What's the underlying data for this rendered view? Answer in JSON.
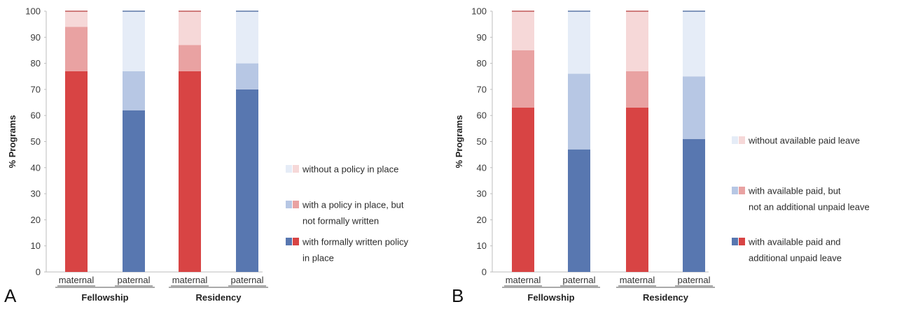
{
  "panel_letters": [
    "A",
    "B"
  ],
  "colors": {
    "maternal": [
      "#d84444",
      "#e9a2a2",
      "#f6d8d8"
    ],
    "paternal": [
      "#5877b0",
      "#b7c7e4",
      "#e5ecf7"
    ],
    "axis": "#bdbdbd",
    "text": "#333333"
  },
  "chart_data": [
    {
      "type": "bar",
      "stacked": true,
      "panel": "A",
      "ylabel": "% Programs",
      "ylim": [
        0,
        100
      ],
      "yticks": [
        0,
        10,
        20,
        30,
        40,
        50,
        60,
        70,
        80,
        90,
        100
      ],
      "grid": false,
      "categories": [
        "maternal",
        "paternal",
        "maternal",
        "paternal"
      ],
      "groups": [
        {
          "label": "Fellowship",
          "categories": [
            "maternal",
            "paternal"
          ]
        },
        {
          "label": "Residency",
          "categories": [
            "maternal",
            "paternal"
          ]
        }
      ],
      "series": [
        {
          "name": "with formally written policy in place",
          "values": [
            77,
            62,
            77,
            70
          ]
        },
        {
          "name": "with a policy in place, but not formally written",
          "values": [
            17,
            15,
            10,
            10
          ]
        },
        {
          "name": "without a policy in place",
          "values": [
            6,
            23,
            13,
            20
          ]
        }
      ],
      "legend_order": [
        2,
        1,
        0
      ],
      "legend_position": "right"
    },
    {
      "type": "bar",
      "stacked": true,
      "panel": "B",
      "ylabel": "% Programs",
      "ylim": [
        0,
        100
      ],
      "yticks": [
        0,
        10,
        20,
        30,
        40,
        50,
        60,
        70,
        80,
        90,
        100
      ],
      "grid": false,
      "categories": [
        "maternal",
        "paternal",
        "maternal",
        "paternal"
      ],
      "groups": [
        {
          "label": "Fellowship",
          "categories": [
            "maternal",
            "paternal"
          ]
        },
        {
          "label": "Residency",
          "categories": [
            "maternal",
            "paternal"
          ]
        }
      ],
      "series": [
        {
          "name": "with available paid and additional unpaid leave",
          "values": [
            63,
            47,
            63,
            51
          ]
        },
        {
          "name": "with available paid, but not an additional unpaid leave",
          "values": [
            22,
            29,
            14,
            24
          ]
        },
        {
          "name": "without available paid leave",
          "values": [
            15,
            24,
            23,
            25
          ]
        }
      ],
      "legend_order": [
        2,
        1,
        0
      ],
      "legend_position": "right"
    }
  ]
}
